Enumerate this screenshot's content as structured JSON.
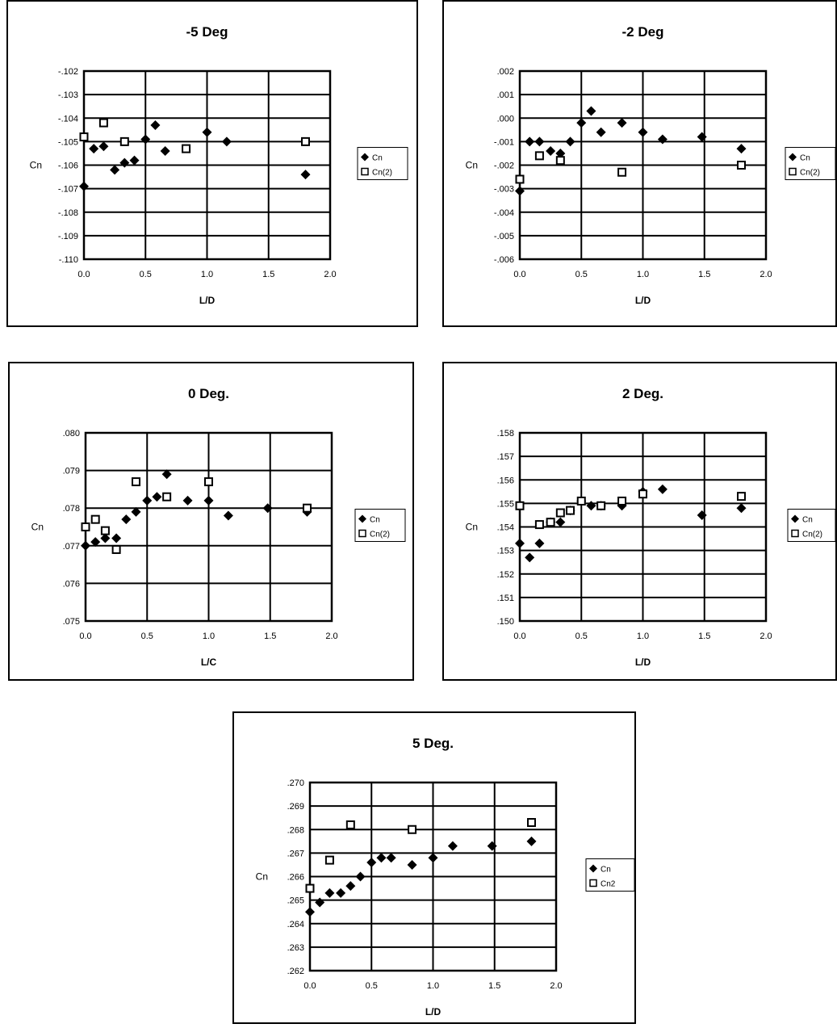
{
  "chart_data": [
    {
      "type": "scatter",
      "title": "-5 Deg",
      "xlabel": "L/D",
      "ylabel": "Cn",
      "xlim": [
        0,
        2
      ],
      "ylim": [
        -0.11,
        -0.102
      ],
      "grid": true,
      "legend_position": "right",
      "x_ticks": [
        "0.0",
        "0.5",
        "1.0",
        "1.5",
        "2.0"
      ],
      "y_ticks": [
        "-.110",
        "-.109",
        "-.108",
        "-.107",
        "-.106",
        "-.105",
        "-.104",
        "-.103",
        "-.102"
      ],
      "series": [
        {
          "name": "Cn",
          "marker": "diamond",
          "x": [
            0.0,
            0.08,
            0.16,
            0.25,
            0.33,
            0.41,
            0.5,
            0.58,
            0.66,
            1.0,
            1.16,
            1.8
          ],
          "y": [
            -0.1069,
            -0.1053,
            -0.1052,
            -0.1062,
            -0.1059,
            -0.1058,
            -0.1049,
            -0.1043,
            -0.1054,
            -0.1046,
            -0.105,
            -0.1064
          ]
        },
        {
          "name": "Cn(2)",
          "marker": "square",
          "x": [
            0.0,
            0.16,
            0.33,
            0.83,
            1.8
          ],
          "y": [
            -0.1048,
            -0.1042,
            -0.105,
            -0.1053,
            -0.105
          ]
        }
      ]
    },
    {
      "type": "scatter",
      "title": "-2 Deg",
      "xlabel": "L/D",
      "ylabel": "Cn",
      "xlim": [
        0,
        2
      ],
      "ylim": [
        -0.006,
        0.002
      ],
      "grid": true,
      "legend_position": "right",
      "x_ticks": [
        "0.0",
        "0.5",
        "1.0",
        "1.5",
        "2.0"
      ],
      "y_ticks": [
        "-.006",
        "-.005",
        "-.004",
        "-.003",
        "-.002",
        "-.001",
        ".000",
        ".001",
        ".002"
      ],
      "series": [
        {
          "name": "Cn",
          "marker": "diamond",
          "x": [
            0.0,
            0.08,
            0.16,
            0.25,
            0.33,
            0.41,
            0.5,
            0.58,
            0.66,
            0.83,
            1.0,
            1.16,
            1.48,
            1.8
          ],
          "y": [
            -0.0031,
            -0.001,
            -0.001,
            -0.0014,
            -0.0015,
            -0.001,
            -0.0002,
            0.0003,
            -0.0006,
            -0.0002,
            -0.0006,
            -0.0009,
            -0.0008,
            -0.0013
          ]
        },
        {
          "name": "Cn(2)",
          "marker": "square",
          "x": [
            0.0,
            0.16,
            0.33,
            0.83,
            1.8
          ],
          "y": [
            -0.0026,
            -0.0016,
            -0.0018,
            -0.0023,
            -0.002
          ]
        }
      ]
    },
    {
      "type": "scatter",
      "title": "0 Deg.",
      "xlabel": "L/C",
      "ylabel": "Cn",
      "xlim": [
        0,
        2
      ],
      "ylim": [
        0.075,
        0.08
      ],
      "grid": true,
      "legend_position": "right",
      "x_ticks": [
        "0.0",
        "0.5",
        "1.0",
        "1.5",
        "2.0"
      ],
      "y_ticks": [
        ".075",
        ".076",
        ".077",
        ".078",
        ".079",
        ".080"
      ],
      "series": [
        {
          "name": "Cn",
          "marker": "diamond",
          "x": [
            0.0,
            0.08,
            0.16,
            0.25,
            0.33,
            0.41,
            0.5,
            0.58,
            0.66,
            0.83,
            1.0,
            1.16,
            1.48,
            1.8
          ],
          "y": [
            0.077,
            0.0771,
            0.0772,
            0.0772,
            0.0777,
            0.0779,
            0.0782,
            0.0783,
            0.0789,
            0.0782,
            0.0782,
            0.0778,
            0.078,
            0.0779
          ]
        },
        {
          "name": "Cn(2)",
          "marker": "square",
          "x": [
            0.0,
            0.08,
            0.16,
            0.25,
            0.41,
            0.66,
            1.0,
            1.8
          ],
          "y": [
            0.0775,
            0.0777,
            0.0774,
            0.0769,
            0.0787,
            0.0783,
            0.0787,
            0.078
          ]
        }
      ]
    },
    {
      "type": "scatter",
      "title": "2 Deg.",
      "xlabel": "L/D",
      "ylabel": "Cn",
      "xlim": [
        0,
        2
      ],
      "ylim": [
        0.15,
        0.158
      ],
      "grid": true,
      "legend_position": "right",
      "x_ticks": [
        "0.0",
        "0.5",
        "1.0",
        "1.5",
        "2.0"
      ],
      "y_ticks": [
        ".150",
        ".151",
        ".152",
        ".153",
        ".154",
        ".155",
        ".156",
        ".157",
        ".158"
      ],
      "series": [
        {
          "name": "Cn",
          "marker": "diamond",
          "x": [
            0.0,
            0.08,
            0.16,
            0.25,
            0.33,
            0.41,
            0.5,
            0.58,
            0.66,
            0.83,
            1.0,
            1.16,
            1.48,
            1.8
          ],
          "y": [
            0.1533,
            0.1527,
            0.1533,
            0.1542,
            0.1542,
            0.1547,
            0.1551,
            0.1549,
            0.1549,
            0.1549,
            0.1555,
            0.1556,
            0.1545,
            0.1548
          ]
        },
        {
          "name": "Cn(2)",
          "marker": "square",
          "x": [
            0.0,
            0.16,
            0.25,
            0.33,
            0.41,
            0.5,
            0.66,
            0.83,
            1.0,
            1.8
          ],
          "y": [
            0.1549,
            0.1541,
            0.1542,
            0.1546,
            0.1547,
            0.1551,
            0.1549,
            0.1551,
            0.1554,
            0.1553
          ]
        }
      ]
    },
    {
      "type": "scatter",
      "title": "5 Deg.",
      "xlabel": "L/D",
      "ylabel": "Cn",
      "xlim": [
        0,
        2
      ],
      "ylim": [
        0.262,
        0.27
      ],
      "grid": true,
      "legend_position": "right",
      "x_ticks": [
        "0.0",
        "0.5",
        "1.0",
        "1.5",
        "2.0"
      ],
      "y_ticks": [
        ".262",
        ".263",
        ".264",
        ".265",
        ".266",
        ".267",
        ".268",
        ".269",
        ".270"
      ],
      "series": [
        {
          "name": "Cn",
          "marker": "diamond",
          "x": [
            0.0,
            0.08,
            0.16,
            0.25,
            0.33,
            0.41,
            0.5,
            0.58,
            0.66,
            0.83,
            1.0,
            1.16,
            1.48,
            1.8
          ],
          "y": [
            0.2645,
            0.2649,
            0.2653,
            0.2653,
            0.2656,
            0.266,
            0.2666,
            0.2668,
            0.2668,
            0.2665,
            0.2668,
            0.2673,
            0.2673,
            0.2675
          ]
        },
        {
          "name": "Cn2",
          "marker": "square",
          "x": [
            0.0,
            0.16,
            0.33,
            0.83,
            1.8
          ],
          "y": [
            0.2655,
            0.2667,
            0.2682,
            0.268,
            0.2683
          ]
        }
      ]
    }
  ]
}
